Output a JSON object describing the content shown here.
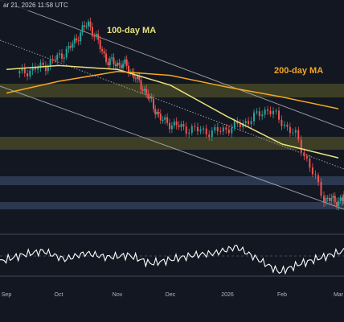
{
  "header": {
    "timestamp": "ar 21, 2026 11:58 UTC"
  },
  "colors": {
    "background": "#131722",
    "candle_up": "#26a69a",
    "candle_down": "#ef5350",
    "ma100": "#e8e27a",
    "ma200": "#f5a623",
    "support_zone": "#3d4f70",
    "resistance_zone": "#8a8a2a",
    "oscillator": "#ffffff",
    "trendline": "#c8cad3"
  },
  "chart_data": {
    "type": "line",
    "title": "",
    "xlabel": "",
    "ylabel": "",
    "x_ticks": [
      "Sep",
      "Oct",
      "Nov",
      "Dec",
      "2026",
      "Feb",
      "Mar"
    ],
    "series": [
      {
        "name": "100-day MA",
        "x": [
          "Sep",
          "Oct",
          "Nov",
          "Dec",
          "2026",
          "Feb",
          "Mar"
        ],
        "y": [
          0.72,
          0.74,
          0.72,
          0.64,
          0.48,
          0.34,
          0.27
        ]
      },
      {
        "name": "200-day MA",
        "x": [
          "Sep",
          "Oct",
          "Nov",
          "Dec",
          "2026",
          "Feb",
          "Mar"
        ],
        "y": [
          0.6,
          0.66,
          0.71,
          0.69,
          0.63,
          0.58,
          0.52
        ]
      }
    ],
    "price_candles_approx": {
      "x": [
        "Sep",
        "Sep",
        "Oct",
        "Oct",
        "Oct",
        "Nov",
        "Nov",
        "Nov",
        "Dec",
        "Dec",
        "2026",
        "2026",
        "Feb",
        "Feb",
        "Mar",
        "Mar"
      ],
      "close": [
        0.7,
        0.74,
        0.82,
        0.96,
        0.76,
        0.74,
        0.62,
        0.46,
        0.42,
        0.4,
        0.44,
        0.52,
        0.38,
        0.06,
        0.05,
        0.12
      ]
    },
    "rsi_approx": [
      0.35,
      0.5,
      0.6,
      0.4,
      0.55,
      0.45,
      0.5,
      0.3,
      0.4,
      0.5,
      0.55,
      0.7,
      0.4,
      0.1,
      0.3,
      0.45,
      0.6
    ],
    "annotations": [
      "100-day MA",
      "200-day MA"
    ],
    "grid": false,
    "legend": "none"
  }
}
